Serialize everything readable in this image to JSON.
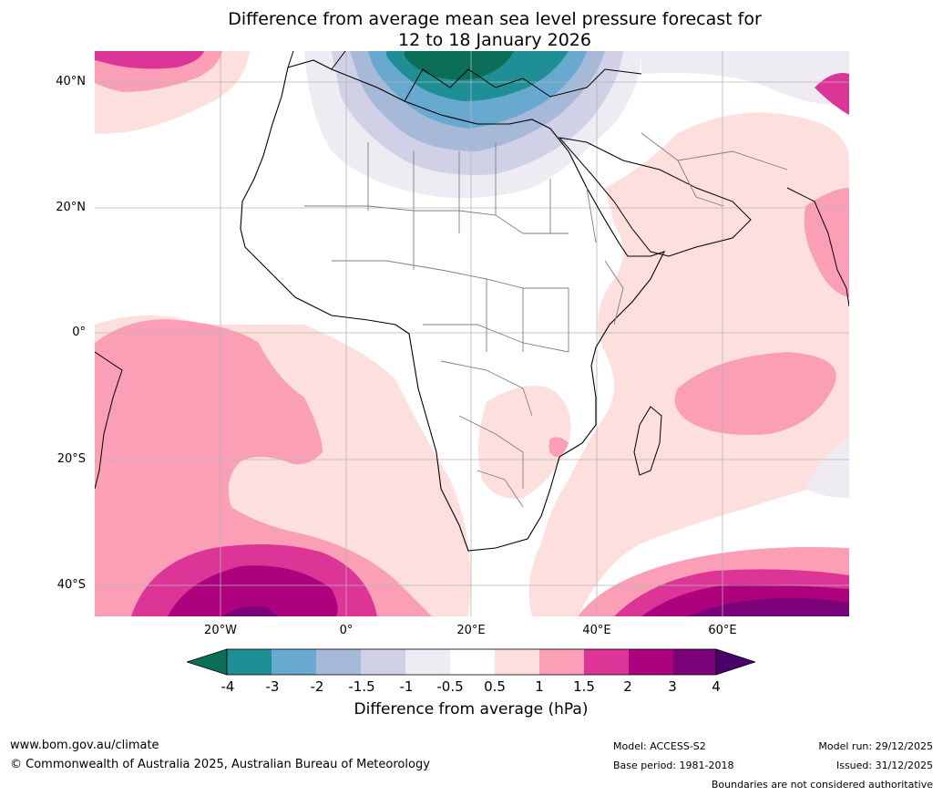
{
  "title_line1": "Difference from average mean sea level pressure forecast for",
  "title_line2": "12 to 18 January 2026",
  "lat_labels": [
    "40°N",
    "20°N",
    "0°",
    "20°S",
    "40°S"
  ],
  "lon_labels": [
    "20°W",
    "0°",
    "20°E",
    "40°E",
    "60°E"
  ],
  "colorbar": {
    "label": "Difference from average (hPa)",
    "ticks": [
      "-4",
      "-3",
      "-2",
      "-1.5",
      "-1",
      "-0.5",
      "0.5",
      "1",
      "1.5",
      "2",
      "3",
      "4"
    ],
    "colors": {
      "under": "#0a6e58",
      "n4_3": "#1f8f96",
      "n3_2": "#67a9cf",
      "n2_15": "#a6b9d8",
      "n15_1": "#d0d1e6",
      "n1_05": "#efebf3",
      "n05_05": "#ffffff",
      "p05_1": "#fde0dd",
      "p1_15": "#fa9fb5",
      "p15_2": "#dd3497",
      "p2_3": "#ae017e",
      "p3_4": "#7a0177",
      "over": "#49006a"
    }
  },
  "footer": {
    "site": "www.bom.gov.au/climate",
    "copyright": "© Commonwealth of Australia 2025, Australian Bureau of Meteorology",
    "model": "Model: ACCESS-S2",
    "base_period": "Base period: 1981-2018",
    "model_run": "Model run: 29/12/2025",
    "issued": "Issued: 31/12/2025",
    "disclaimer": "Boundaries are not considered authoritative"
  }
}
